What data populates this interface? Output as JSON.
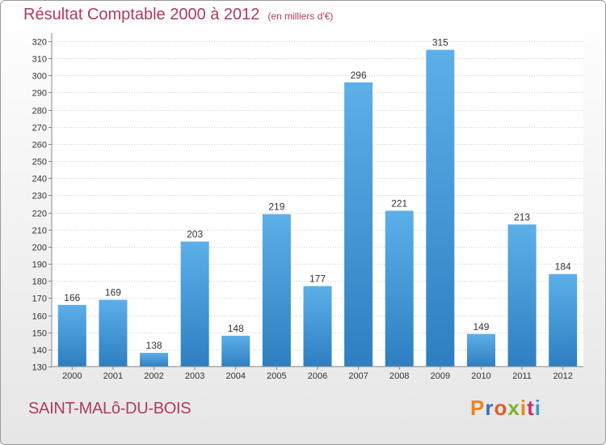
{
  "chart_data": {
    "type": "bar",
    "title": "Résultat Comptable 2000 à 2012",
    "subtitle": "(en milliers d'€)",
    "categories": [
      "2000",
      "2001",
      "2002",
      "2003",
      "2004",
      "2005",
      "2006",
      "2007",
      "2008",
      "2009",
      "2010",
      "2011",
      "2012"
    ],
    "values": [
      166,
      169,
      138,
      203,
      148,
      219,
      177,
      296,
      221,
      315,
      149,
      213,
      184
    ],
    "xlabel": "",
    "ylabel": "",
    "ylim": [
      130,
      320
    ],
    "ytick_step": 10,
    "grid": true,
    "legend": "none"
  },
  "footer": {
    "commune": "SAINT-MALô-DU-BOIS",
    "brand": [
      "P",
      "r",
      "o",
      "x",
      "i",
      "t",
      "i"
    ]
  },
  "colors": {
    "title": "#b03a5e",
    "bar_top": "#5dafe9",
    "bar_bottom": "#2d7fc1",
    "grid": "#cccccc",
    "brand": [
      "#e8861b",
      "#3a6fbd",
      "#e05b2a",
      "#7ab42b",
      "#e8861b",
      "#c2346b",
      "#3a9ad9"
    ]
  }
}
